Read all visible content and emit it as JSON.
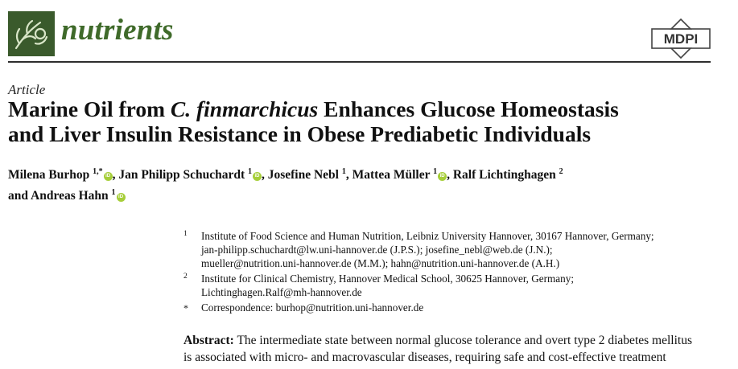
{
  "header": {
    "journal_name": "nutrients",
    "publisher": "MDPI",
    "logo_color": "#3a5a2c",
    "journal_color": "#3f6a2a"
  },
  "article": {
    "type": "Article",
    "title_part1": "Marine Oil from ",
    "title_italic": "C. finmarchicus",
    "title_part2": " Enhances Glucose Homeostasis",
    "title_line2": "and Liver Insulin Resistance in Obese Prediabetic Individuals"
  },
  "authors": [
    {
      "name": "Milena Burhop",
      "sup": "1,*"
    },
    {
      "name": "Jan Philipp Schuchardt",
      "sup": "1"
    },
    {
      "name": "Josefine Nebl",
      "sup": "1"
    },
    {
      "name": "Mattea Müller",
      "sup": "1"
    },
    {
      "name": "Ralf Lichtinghagen",
      "sup": "2"
    },
    {
      "name": "Andreas Hahn",
      "sup": "1"
    }
  ],
  "author_joiner": "and",
  "orcid_label": "iD",
  "affiliations": [
    {
      "mark": "1",
      "lines": [
        "Institute of Food Science and Human Nutrition, Leibniz University Hannover, 30167 Hannover, Germany;",
        "jan-philipp.schuchardt@lw.uni-hannover.de (J.P.S.); josefine_nebl@web.de (J.N.);",
        "mueller@nutrition.uni-hannover.de (M.M.); hahn@nutrition.uni-hannover.de (A.H.)"
      ]
    },
    {
      "mark": "2",
      "lines": [
        "Institute for Clinical Chemistry, Hannover Medical School, 30625 Hannover, Germany;",
        "Lichtinghagen.Ralf@mh-hannover.de"
      ]
    },
    {
      "mark": "*",
      "lines": [
        "Correspondence: burhop@nutrition.uni-hannover.de"
      ]
    }
  ],
  "abstract": {
    "label": "Abstract:",
    "line1": " The intermediate state between normal glucose tolerance and overt type 2 diabetes mellitus",
    "line2": "is associated with micro- and macrovascular diseases, requiring safe and cost-effective treatment"
  }
}
